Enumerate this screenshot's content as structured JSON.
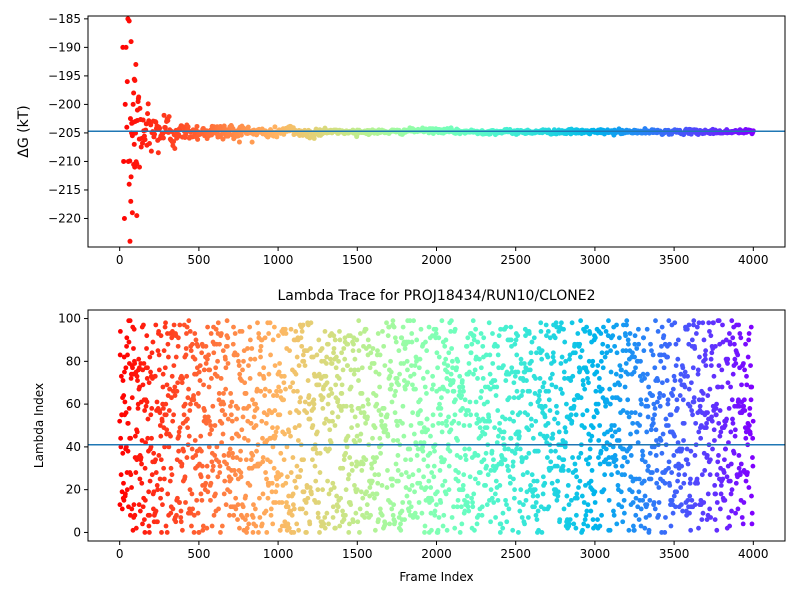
{
  "colors": {
    "hline": "#1f77b4",
    "axis": "#000000",
    "colormap": "rainbow (reversed: red at start, violet at end)"
  },
  "chart_data": [
    {
      "type": "scatter",
      "title": "",
      "xlabel": "",
      "ylabel": "ΔG (kT)",
      "xlim": [
        -200,
        4200
      ],
      "ylim": [
        -225,
        -184.5
      ],
      "xticks": [
        0,
        500,
        1000,
        1500,
        2000,
        2500,
        3000,
        3500,
        4000
      ],
      "yticks": [
        -220,
        -215,
        -210,
        -205,
        -200,
        -195,
        -190,
        -185
      ],
      "hline": -204.7,
      "grid": false,
      "series": [
        {
          "description": "running free-energy estimate per frame, colored by frame index",
          "points_sample": [
            [
              20,
              -210
            ],
            [
              30,
              -190
            ],
            [
              40,
              -220
            ],
            [
              50,
              -204
            ],
            [
              60,
              -185
            ],
            [
              70,
              -213
            ],
            [
              80,
              -200
            ],
            [
              100,
              -207
            ],
            [
              120,
              -199
            ],
            [
              150,
              -208
            ],
            [
              200,
              -206
            ],
            [
              300,
              -205
            ],
            [
              500,
              -205
            ],
            [
              700,
              -205
            ],
            [
              1000,
              -205.5
            ],
            [
              1250,
              -204.5
            ],
            [
              1500,
              -205.2
            ],
            [
              2000,
              -204.7
            ],
            [
              2500,
              -205
            ],
            [
              3000,
              -204.8
            ],
            [
              3500,
              -204.8
            ],
            [
              4000,
              -204.8
            ]
          ]
        }
      ]
    },
    {
      "type": "scatter",
      "title": "Lambda Trace for PROJ18434/RUN10/CLONE2",
      "xlabel": "Frame Index",
      "ylabel": "Lambda Index",
      "xlim": [
        -200,
        4200
      ],
      "ylim": [
        -4,
        104
      ],
      "xticks": [
        0,
        500,
        1000,
        1500,
        2000,
        2500,
        3000,
        3500,
        4000
      ],
      "yticks": [
        0,
        20,
        40,
        60,
        80,
        100
      ],
      "hline": 41,
      "grid": false,
      "series": [
        {
          "description": "lambda index visited at each frame (~1 point per frame, uniformly spread 0–99), colored by frame index",
          "x_range": [
            0,
            4000
          ],
          "y_range": [
            0,
            99
          ]
        }
      ]
    }
  ]
}
